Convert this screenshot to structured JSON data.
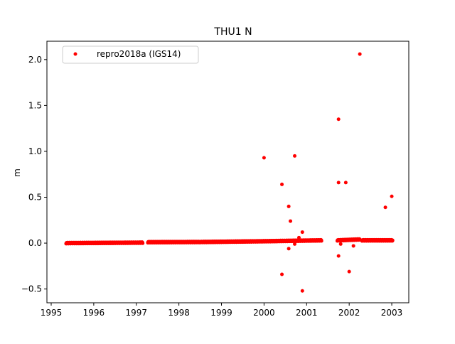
{
  "chart_data": {
    "type": "scatter",
    "title": "THU1 N",
    "xlabel": "",
    "ylabel": "m",
    "xlim": [
      1994.9,
      2003.4
    ],
    "ylim": [
      -0.65,
      2.2
    ],
    "x_ticks": [
      1995,
      1996,
      1997,
      1998,
      1999,
      2000,
      2001,
      2002,
      2003
    ],
    "x_tick_labels": [
      "1995",
      "1996",
      "1997",
      "1998",
      "1999",
      "2000",
      "2001",
      "2002",
      "2003"
    ],
    "y_ticks": [
      -0.5,
      0.0,
      0.5,
      1.0,
      1.5,
      2.0
    ],
    "y_tick_labels": [
      "−0.5",
      "0.0",
      "0.5",
      "1.0",
      "1.5",
      "2.0"
    ],
    "grid": false,
    "legend_position": "upper-left",
    "series": [
      {
        "name": "repro2018a (IGS14)",
        "color": "#ff0000",
        "marker": "circle",
        "dense_segments": [
          {
            "x_start": 1995.35,
            "x_end": 1997.15,
            "y_start": 0.0,
            "y_end": 0.005
          },
          {
            "x_start": 1997.27,
            "x_end": 1998.5,
            "y_start": 0.01,
            "y_end": 0.012
          },
          {
            "x_start": 1998.5,
            "x_end": 1999.95,
            "y_start": 0.012,
            "y_end": 0.02
          },
          {
            "x_start": 1999.95,
            "x_end": 2001.35,
            "y_start": 0.02,
            "y_end": 0.03
          },
          {
            "x_start": 2001.72,
            "x_end": 2002.25,
            "y_start": 0.03,
            "y_end": 0.04
          },
          {
            "x_start": 2002.3,
            "x_end": 2003.02,
            "y_start": 0.03,
            "y_end": 0.03
          }
        ],
        "outliers": [
          {
            "x": 2000.0,
            "y": 0.93
          },
          {
            "x": 2000.42,
            "y": 0.64
          },
          {
            "x": 2000.42,
            "y": -0.34
          },
          {
            "x": 2000.58,
            "y": 0.4
          },
          {
            "x": 2000.62,
            "y": 0.24
          },
          {
            "x": 2000.58,
            "y": -0.06
          },
          {
            "x": 2000.72,
            "y": 0.95
          },
          {
            "x": 2000.72,
            "y": -0.01
          },
          {
            "x": 2000.82,
            "y": 0.06
          },
          {
            "x": 2000.9,
            "y": 0.12
          },
          {
            "x": 2000.9,
            "y": -0.52
          },
          {
            "x": 2001.75,
            "y": 1.35
          },
          {
            "x": 2001.75,
            "y": 0.66
          },
          {
            "x": 2001.75,
            "y": -0.14
          },
          {
            "x": 2001.92,
            "y": 0.66
          },
          {
            "x": 2002.0,
            "y": -0.31
          },
          {
            "x": 2002.25,
            "y": 2.06
          },
          {
            "x": 2002.85,
            "y": 0.39
          },
          {
            "x": 2003.0,
            "y": 0.51
          },
          {
            "x": 2001.8,
            "y": -0.01
          },
          {
            "x": 2002.1,
            "y": -0.03
          }
        ]
      }
    ]
  }
}
